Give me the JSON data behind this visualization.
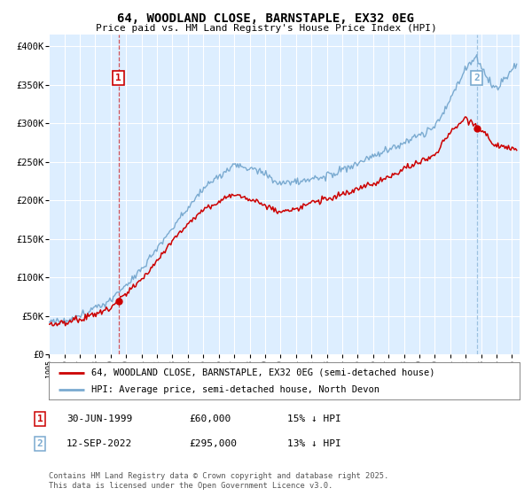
{
  "title": "64, WOODLAND CLOSE, BARNSTAPLE, EX32 0EG",
  "subtitle": "Price paid vs. HM Land Registry's House Price Index (HPI)",
  "ylabel_ticks": [
    "£0",
    "£50K",
    "£100K",
    "£150K",
    "£200K",
    "£250K",
    "£300K",
    "£350K",
    "£400K"
  ],
  "ytick_values": [
    0,
    50000,
    100000,
    150000,
    200000,
    250000,
    300000,
    350000,
    400000
  ],
  "ylim": [
    0,
    415000
  ],
  "xlim_start": 1995.0,
  "xlim_end": 2025.5,
  "red_color": "#cc0000",
  "blue_color": "#7aaad0",
  "background_color": "#ddeeff",
  "plot_bg_color": "#ddeeff",
  "grid_color": "#ffffff",
  "marker1_x": 1999.5,
  "marker1_y_hpi": 60000,
  "marker1_y_price": 60000,
  "marker2_x": 2022.71,
  "marker2_y_hpi": 295000,
  "marker2_y_price": 295000,
  "legend_line1": "64, WOODLAND CLOSE, BARNSTAPLE, EX32 0EG (semi-detached house)",
  "legend_line2": "HPI: Average price, semi-detached house, North Devon",
  "footnote1_label": "1",
  "footnote1_date": "30-JUN-1999",
  "footnote1_price": "£60,000",
  "footnote1_hpi": "15% ↓ HPI",
  "footnote2_label": "2",
  "footnote2_date": "12-SEP-2022",
  "footnote2_price": "£295,000",
  "footnote2_hpi": "13% ↓ HPI",
  "copyright": "Contains HM Land Registry data © Crown copyright and database right 2025.\nThis data is licensed under the Open Government Licence v3.0.",
  "title_fontsize": 10,
  "subtitle_fontsize": 8,
  "tick_fontsize": 7.5,
  "legend_fontsize": 7.5,
  "footnote_fontsize": 8
}
